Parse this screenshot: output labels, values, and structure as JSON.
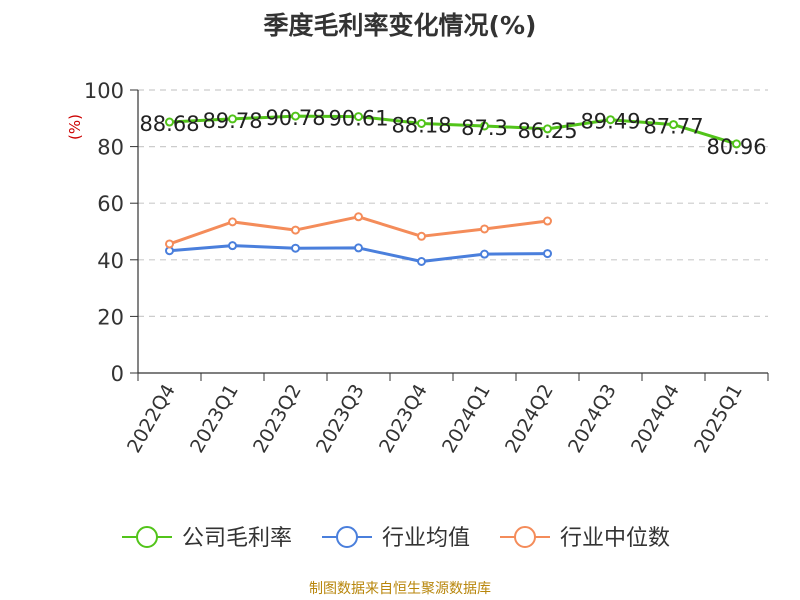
{
  "chart_data": {
    "type": "line",
    "title": "季度毛利率变化情况(%)",
    "ylabel": "(%)",
    "xlabel": "",
    "ylim": [
      0,
      100
    ],
    "yticks": [
      0,
      20,
      40,
      60,
      80,
      100
    ],
    "grid": true,
    "legend_position": "bottom",
    "categories": [
      "2022Q4",
      "2023Q1",
      "2023Q2",
      "2023Q3",
      "2023Q4",
      "2024Q1",
      "2024Q2",
      "2024Q3",
      "2024Q4",
      "2025Q1"
    ],
    "series": [
      {
        "name": "公司毛利率",
        "color": "#52c41a",
        "values": [
          88.68,
          89.78,
          90.78,
          90.61,
          88.18,
          87.3,
          86.25,
          89.49,
          87.77,
          80.96
        ],
        "labels": [
          "88.68",
          "89.78",
          "90.78",
          "90.61",
          "88.18",
          "87.3",
          "86.25",
          "89.49",
          "87.77",
          "80.96"
        ]
      },
      {
        "name": "行业均值",
        "color": "#4a7fdc",
        "values": [
          43.2,
          45.0,
          44.1,
          44.2,
          39.4,
          42.0,
          42.2,
          null,
          null,
          null
        ]
      },
      {
        "name": "行业中位数",
        "color": "#f48c5a",
        "values": [
          45.6,
          53.4,
          50.5,
          55.2,
          48.3,
          50.9,
          53.7,
          null,
          null,
          null
        ]
      }
    ]
  },
  "source": "制图数据来自恒生聚源数据库",
  "colors": {
    "axis": "#333333",
    "grid": "#cccccc",
    "ylabel": "#cc0000",
    "source": "#b8860b"
  }
}
